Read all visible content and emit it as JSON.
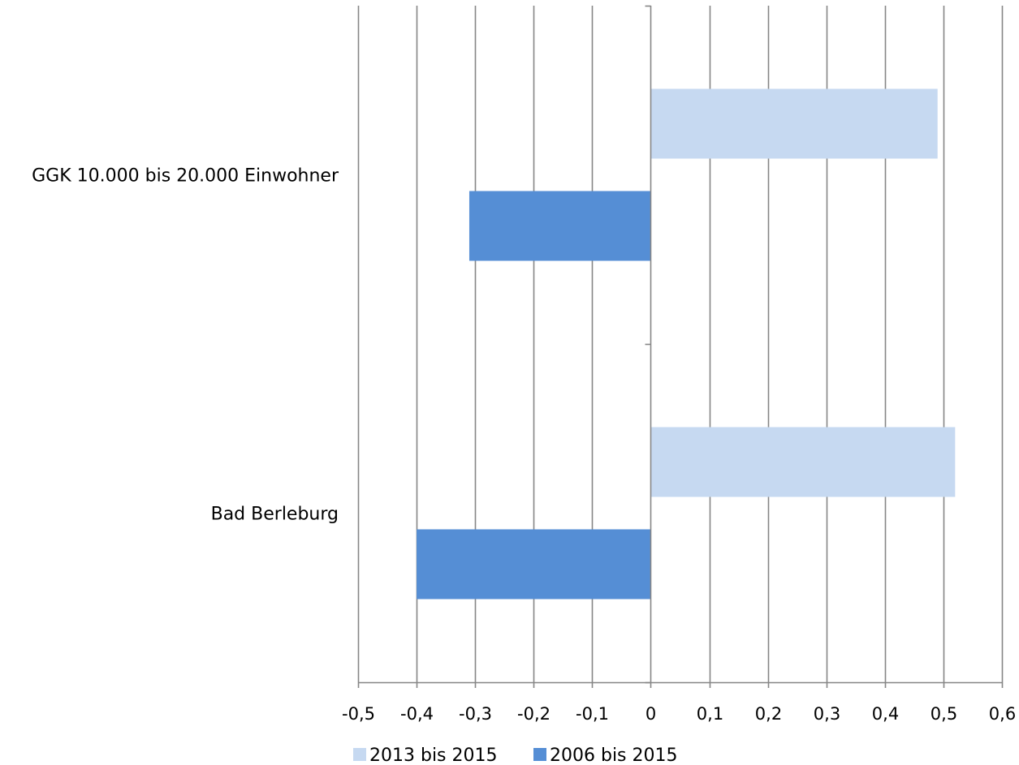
{
  "chart_data": {
    "type": "bar",
    "orientation": "horizontal",
    "categories": [
      "GGK 10.000 bis 20.000 Einwohner",
      "Bad Berleburg"
    ],
    "series": [
      {
        "name": "2013 bis 2015",
        "values": [
          0.49,
          0.52
        ],
        "color": "#c6d9f1"
      },
      {
        "name": "2006 bis 2015",
        "values": [
          -0.31,
          -0.4
        ],
        "color": "#558ed5"
      }
    ],
    "xlim": [
      -0.5,
      0.6
    ],
    "xticks": [
      -0.5,
      -0.4,
      -0.3,
      -0.2,
      -0.1,
      0,
      0.1,
      0.2,
      0.3,
      0.4,
      0.5,
      0.6
    ],
    "xtick_labels": [
      "-0,5",
      "-0,4",
      "-0,3",
      "-0,2",
      "-0,1",
      "0",
      "0,1",
      "0,2",
      "0,3",
      "0,4",
      "0,5",
      "0,6"
    ],
    "grid": true,
    "legend": "bottom",
    "gridline_color": "#868686",
    "axis_color": "#868686"
  }
}
